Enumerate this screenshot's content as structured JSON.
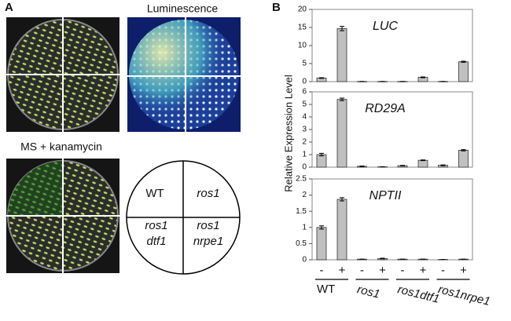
{
  "panel_a": {
    "label": "A",
    "top_title": "Luminescence",
    "bottom_title": "MS + kanamycin",
    "schematic": [
      [
        "WT"
      ],
      [
        "ros1"
      ],
      [
        "ros1",
        "dtf1"
      ],
      [
        "ros1",
        "nrpe1"
      ]
    ]
  },
  "panel_b": {
    "label": "B",
    "y_label": "Relative Expression Level"
  },
  "chart_data": [
    {
      "type": "bar",
      "title": "LUC",
      "color": "#c0c0c0",
      "values": [
        1.0,
        14.7,
        0.05,
        0.05,
        0.05,
        1.2,
        0.05,
        5.5
      ],
      "errors": [
        0.1,
        0.6,
        0,
        0,
        0,
        0.1,
        0,
        0.15
      ],
      "ylim": [
        0,
        20
      ],
      "yticks": [
        0,
        5,
        10,
        15,
        20
      ]
    },
    {
      "type": "bar",
      "title": "RD29A",
      "color": "#c0c0c0",
      "values": [
        1.0,
        5.4,
        0.07,
        0.03,
        0.12,
        0.55,
        0.15,
        1.35
      ],
      "errors": [
        0.1,
        0.1,
        0.02,
        0.01,
        0.02,
        0.03,
        0.03,
        0.05
      ],
      "ylim": [
        0,
        6
      ],
      "yticks": [
        0,
        1,
        2,
        3,
        4,
        5,
        6
      ]
    },
    {
      "type": "bar",
      "title": "NPTII",
      "color": "#c0c0c0",
      "values": [
        1.0,
        1.87,
        0.02,
        0.04,
        0.02,
        0.02,
        0.01,
        0.02
      ],
      "errors": [
        0.05,
        0.05,
        0,
        0.01,
        0,
        0,
        0,
        0
      ],
      "ylim": [
        0,
        2.5
      ],
      "yticks": [
        0,
        0.5,
        1,
        1.5,
        2,
        2.5
      ],
      "categories": [
        "-",
        "+",
        "-",
        "+",
        "-",
        "+",
        "-",
        "+"
      ],
      "groups": [
        "WT",
        "ros1",
        "ros1dtf1",
        "ros1nrpe1"
      ]
    }
  ]
}
